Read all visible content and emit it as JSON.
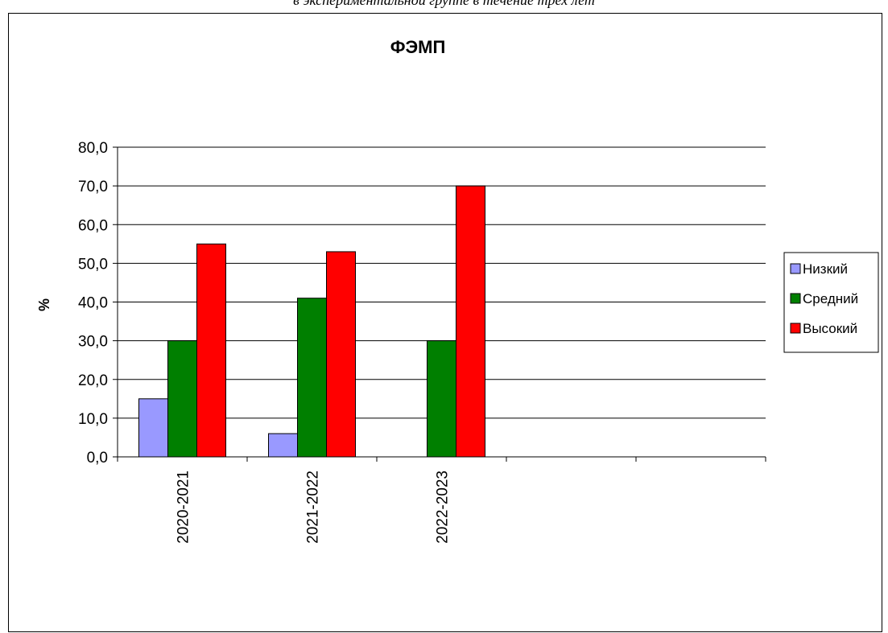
{
  "caption": "в экспериментальной группе в течение трех лет",
  "chart_data": {
    "type": "bar",
    "title": "ФЭМП",
    "ylabel": "%",
    "xlabel": "",
    "ylim": [
      0,
      80
    ],
    "yticks": [
      "0,0",
      "10,0",
      "20,0",
      "30,0",
      "40,0",
      "50,0",
      "60,0",
      "70,0",
      "80,0"
    ],
    "categories": [
      "2020-2021",
      "2021-2022",
      "2022-2023",
      "",
      ""
    ],
    "series": [
      {
        "name": "Низкий",
        "color": "#9999ff",
        "values": [
          15,
          6,
          0,
          null,
          null
        ]
      },
      {
        "name": "Средний",
        "color": "#007f00",
        "values": [
          30,
          41,
          30,
          null,
          null
        ]
      },
      {
        "name": "Высокий",
        "color": "#ff0000",
        "values": [
          55,
          53,
          70,
          null,
          null
        ]
      }
    ],
    "grid": true,
    "legend": "right"
  }
}
